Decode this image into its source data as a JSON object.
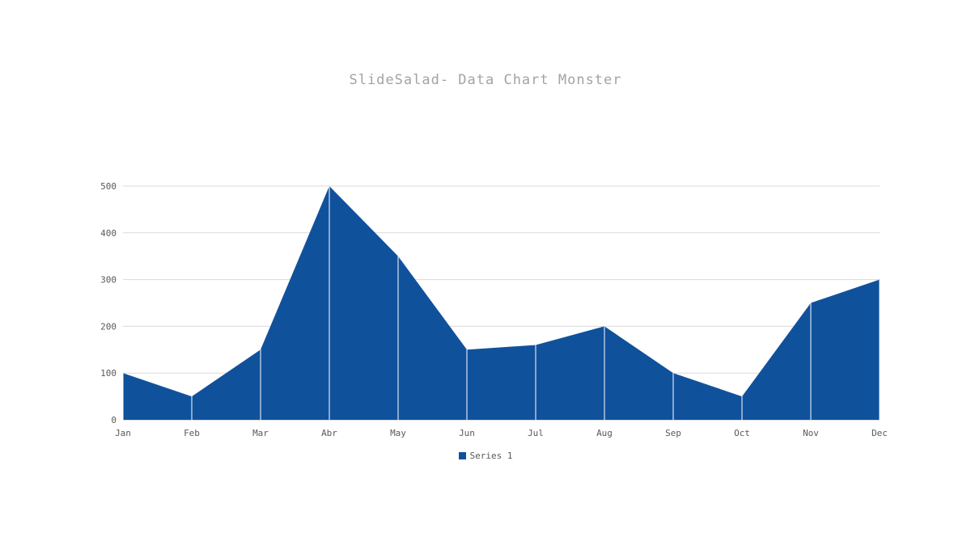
{
  "title": "SlideSalad- Data Chart Monster",
  "legend": {
    "series1_label": "Series 1"
  },
  "colors": {
    "area_fill": "#10519c",
    "gridline": "#d9d9d9",
    "baseline": "#c0c0c0",
    "title_text": "#a3a3a3",
    "tick_text": "#595959"
  },
  "chart_data": {
    "type": "area",
    "title": "SlideSalad- Data Chart Monster",
    "categories": [
      "Jan",
      "Feb",
      "Mar",
      "Abr",
      "May",
      "Jun",
      "Jul",
      "Aug",
      "Sep",
      "Oct",
      "Nov",
      "Dec"
    ],
    "series": [
      {
        "name": "Series 1",
        "values": [
          100,
          50,
          150,
          500,
          350,
          150,
          160,
          200,
          100,
          50,
          250,
          300
        ]
      }
    ],
    "xlabel": "",
    "ylabel": "",
    "ylim": [
      0,
      500
    ],
    "ytick_step": 100,
    "grid": "horizontal",
    "legend_position": "bottom",
    "category_separator_lines": "white-vertical-over-area"
  }
}
